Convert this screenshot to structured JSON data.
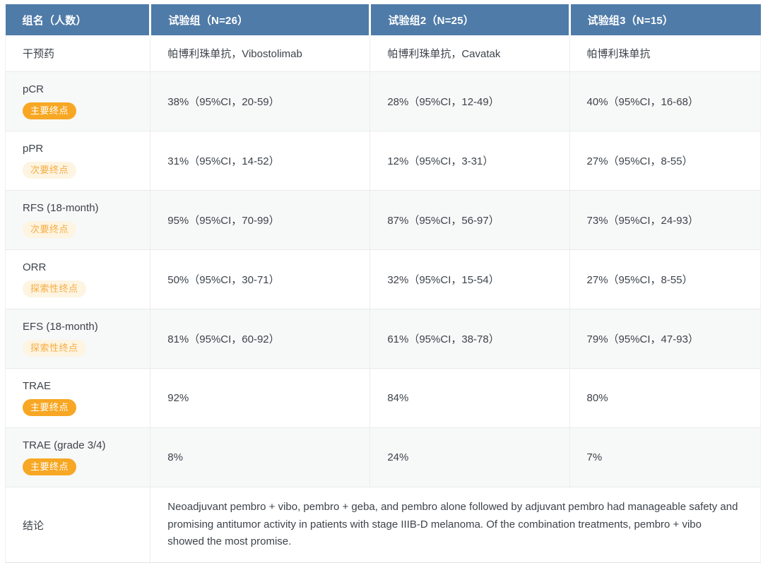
{
  "table": {
    "header": {
      "columns": [
        {
          "label": "组名（人数）"
        },
        {
          "label": "试验组（N=26）"
        },
        {
          "label": "试验组2（N=25）"
        },
        {
          "label": "试验组3（N=15）"
        }
      ]
    },
    "rows": [
      {
        "label": "干预药",
        "values": [
          "帕博利珠单抗，Vibostolimab",
          "帕博利珠单抗，Cavatak",
          "帕博利珠单抗"
        ]
      },
      {
        "label": "pCR",
        "badge": {
          "text": "主要终点",
          "variant": "solid"
        },
        "values": [
          "38%（95%CI，20-59）",
          "28%（95%CI，12-49）",
          "40%（95%CI，16-68）"
        ]
      },
      {
        "label": "pPR",
        "badge": {
          "text": "次要终点",
          "variant": "soft"
        },
        "values": [
          "31%（95%CI，14-52）",
          "12%（95%CI，3-31）",
          "27%（95%CI，8-55）"
        ]
      },
      {
        "label": "RFS (18-month)",
        "badge": {
          "text": "次要终点",
          "variant": "soft"
        },
        "values": [
          "95%（95%CI，70-99）",
          "87%（95%CI，56-97）",
          "73%（95%CI，24-93）"
        ]
      },
      {
        "label": "ORR",
        "badge": {
          "text": "探索性终点",
          "variant": "soft"
        },
        "values": [
          "50%（95%CI，30-71）",
          "32%（95%CI，15-54）",
          "27%（95%CI，8-55）"
        ]
      },
      {
        "label": "EFS (18-month)",
        "badge": {
          "text": "探索性终点",
          "variant": "soft"
        },
        "values": [
          "81%（95%CI，60-92）",
          "61%（95%CI，38-78）",
          "79%（95%CI，47-93）"
        ]
      },
      {
        "label": "TRAE",
        "badge": {
          "text": "主要终点",
          "variant": "solid"
        },
        "values": [
          "92%",
          "84%",
          "80%"
        ]
      },
      {
        "label": "TRAE (grade 3/4)",
        "badge": {
          "text": "主要终点",
          "variant": "solid"
        },
        "values": [
          "8%",
          "24%",
          "7%"
        ]
      }
    ],
    "conclusion": {
      "label": "结论",
      "text": "Neoadjuvant pembro + vibo, pembro + geba, and pembro alone followed by adjuvant pembro had manageable safety and promising antitumor activity in patients with stage IIIB-D melanoma. Of the combination treatments, pembro + vibo showed the most promise."
    }
  },
  "colors": {
    "header_bg": "#4f7ba8",
    "header_text": "#ffffff",
    "badge_solid_bg": "#f7a723",
    "badge_solid_text": "#ffffff",
    "badge_soft_bg": "#fdf4e2",
    "badge_soft_text": "#f6ad42",
    "row_stripe_bg": "#f7f8f8",
    "border": "#e9eaea",
    "body_text": "#3d434a"
  }
}
